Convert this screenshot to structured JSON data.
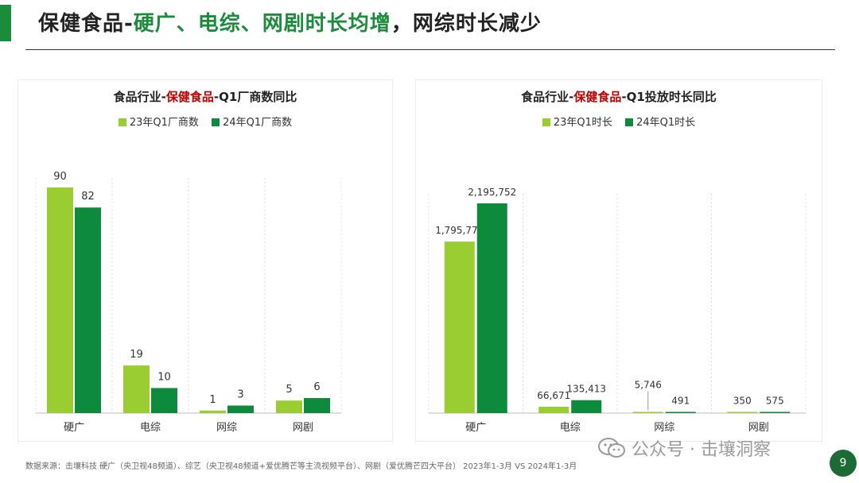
{
  "title": {
    "part1": "保健食品-",
    "part2": "硬广、电综、网剧时长均增",
    "part3": "，网综时长减少"
  },
  "colors": {
    "green_light": "#9acd32",
    "green_dark": "#0e8a3c",
    "accent": "#1c8c3c",
    "red": "#c00000"
  },
  "charts_meta": [
    {
      "title_prefix": "食品行业-",
      "title_highlight": "保健食品",
      "title_suffix": "-Q1厂商数同比"
    },
    {
      "title_prefix": "食品行业-",
      "title_highlight": "保健食品",
      "title_suffix": "-Q1投放时长同比"
    }
  ],
  "chart_data": [
    {
      "type": "bar",
      "categories": [
        "硬广",
        "电综",
        "网综",
        "网剧"
      ],
      "series": [
        {
          "name": "23年Q1厂商数",
          "values": [
            90,
            19,
            1,
            5
          ],
          "labels": [
            "90",
            "19",
            "1",
            "5"
          ]
        },
        {
          "name": "24年Q1厂商数",
          "values": [
            82,
            10,
            3,
            6
          ],
          "labels": [
            "82",
            "10",
            "3",
            "6"
          ]
        }
      ],
      "ylim": [
        0,
        90
      ],
      "grid": true,
      "legend": "top-center"
    },
    {
      "type": "bar",
      "categories": [
        "硬广",
        "电综",
        "网综",
        "网剧"
      ],
      "series": [
        {
          "name": "23年Q1时长",
          "values": [
            1795770,
            66671,
            5746,
            350
          ],
          "labels": [
            "1,795,770",
            "66,671",
            "5,746",
            "350"
          ]
        },
        {
          "name": "24年Q1时长",
          "values": [
            2195752,
            135413,
            491,
            575
          ],
          "labels": [
            "2,195,752",
            "135,413",
            "491",
            "575"
          ]
        }
      ],
      "ylim": [
        0,
        2195752
      ],
      "grid": true,
      "legend": "top-center"
    }
  ],
  "source_note": "数据来源：击壤科技 硬广（央卫视48频道）、综艺（央卫视48频道+爱优腾芒等主流视频平台）、网剧（爱优腾芒四大平台） 2023年1-3月 VS 2024年1-3月",
  "watermark": "公众号 · 击壤洞察",
  "page_number": "9"
}
